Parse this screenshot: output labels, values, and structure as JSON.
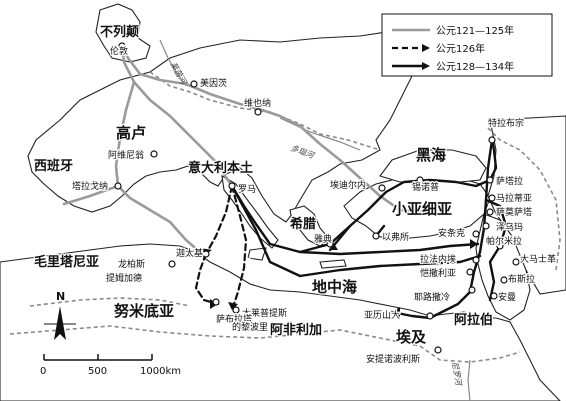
{
  "legend": {
    "items": [
      {
        "label": "公元121—125年",
        "style": "gray"
      },
      {
        "label": "公元126年",
        "style": "dashed"
      },
      {
        "label": "公元128—134年",
        "style": "black"
      }
    ]
  },
  "regions": {
    "britain": "不列颠",
    "gaul": "高卢",
    "spain": "西班牙",
    "italy": "意大利本土",
    "greece": "希腊",
    "asia_minor": "小亚细亚",
    "black_sea": "黑海",
    "mediterranean": "地中海",
    "mauretania": "毛里塔尼亚",
    "numidia": "努米底亚",
    "africa": "阿非利加",
    "egypt": "埃及",
    "arabia": "阿拉伯"
  },
  "cities": {
    "london": "伦敦",
    "mainz": "美因茨",
    "vienna": "维也纳",
    "arles": "阿维尼翁",
    "tarraco": "塔拉戈纳",
    "rome": "罗马",
    "carthage": "迦太基",
    "lambaesis": "提姆加德",
    "thysdrus": "龙柏斯",
    "leptis": "大莱普提斯",
    "sabratha": "萨布拉塔",
    "apollonia": "的黎波里",
    "athens": "雅典",
    "ephesus": "以弗所",
    "antioch": "安条克",
    "tarsus": "埃迪尔内",
    "nicomedia": "锡诺普",
    "trapezus": "特拉布宗",
    "satala": "萨塔拉",
    "melitene": "马拉蒂亚",
    "samosata": "萨莫萨塔",
    "edessa": "泽乌玛",
    "palmyra": "帕尔米拉",
    "damascus": "大马士革",
    "bostra": "布斯拉",
    "gerasa": "安曼",
    "jerusalem": "耶路撒冷",
    "gaza": "恺撒利亚",
    "tyre": "拉法内埃",
    "alexandria": "亚历山大",
    "antinoopolis": "安提诺波利斯"
  },
  "rivers": {
    "rhine": "莱茵河",
    "danube": "多瑙河",
    "nile": "尼罗河"
  },
  "scale": {
    "ticks": [
      "0",
      "500",
      "1000km"
    ]
  },
  "compass": {
    "north": "N"
  },
  "colors": {
    "gray_route": "#9a9a9a",
    "black_route": "#111111",
    "coast": "#222222",
    "border": "#777777"
  }
}
